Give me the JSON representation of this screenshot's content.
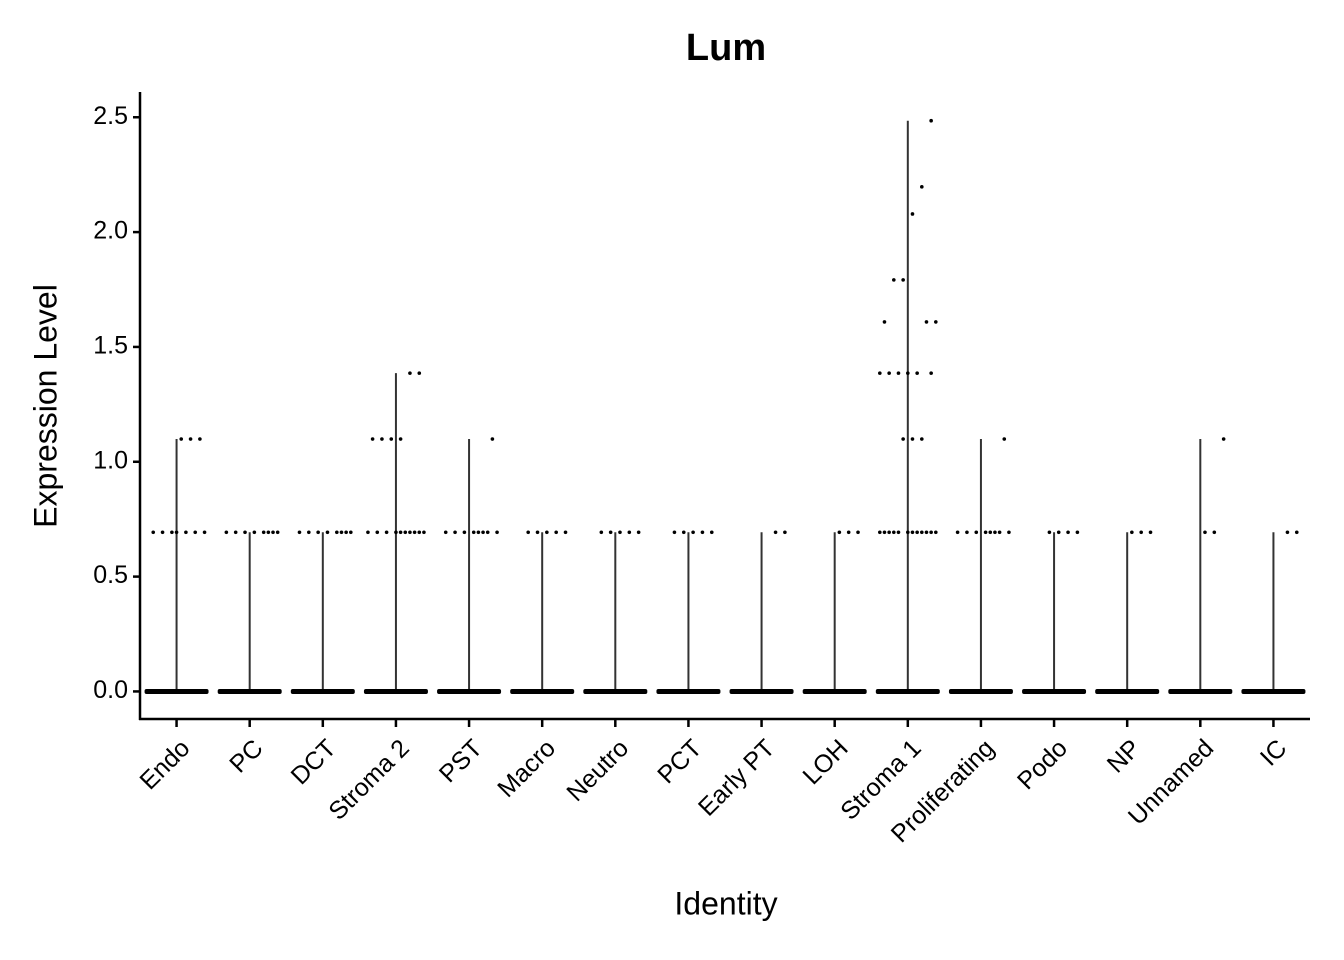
{
  "chart_data": {
    "type": "violin",
    "title": "Lum",
    "x_label": "Identity",
    "y_label": "Expression Level",
    "categories": [
      "Endo",
      "PC",
      "DCT",
      "Stroma 2",
      "PST",
      "Macro",
      "Neutro",
      "PCT",
      "Early PT",
      "LOH",
      "Stroma 1",
      "Proliferating",
      "Podo",
      "NP",
      "Unnamed",
      "IC"
    ],
    "values": [
      1.099,
      0.693,
      0.693,
      1.386,
      1.099,
      0.693,
      0.693,
      0.693,
      0.693,
      0.693,
      2.485,
      1.099,
      0.693,
      0.693,
      1.099,
      0.693
    ],
    "points": [
      [
        0,
        1.099,
        1.099,
        1.099,
        0.693,
        0.693,
        0.693,
        0.693,
        0.693,
        0.693,
        0.693
      ],
      [
        0,
        0.693,
        0.693,
        0.693,
        0.693,
        0.693,
        0.693,
        0.693,
        0.693
      ],
      [
        0,
        0.693,
        0.693,
        0.693,
        0.693,
        0.693,
        0.693,
        0.693,
        0.693
      ],
      [
        0,
        1.386,
        1.386,
        1.099,
        1.099,
        1.099,
        1.099,
        0.693,
        0.693,
        0.693,
        0.693,
        0.693,
        0.693,
        0.693,
        0.693,
        0.693,
        0.693
      ],
      [
        0,
        1.099,
        0.693,
        0.693,
        0.693,
        0.693,
        0.693,
        0.693,
        0.693,
        0.693
      ],
      [
        0,
        0.693,
        0.693,
        0.693,
        0.693,
        0.693
      ],
      [
        0,
        0.693,
        0.693,
        0.693,
        0.693,
        0.693
      ],
      [
        0,
        0.693,
        0.693,
        0.693,
        0.693,
        0.693
      ],
      [
        0,
        0.693,
        0.693
      ],
      [
        0,
        0.693,
        0.693,
        0.693
      ],
      [
        0,
        2.485,
        2.197,
        2.079,
        1.792,
        1.792,
        1.609,
        1.609,
        1.609,
        1.386,
        1.386,
        1.386,
        1.386,
        1.386,
        1.386,
        1.099,
        1.099,
        1.099,
        0.693,
        0.693,
        0.693,
        0.693,
        0.693,
        0.693,
        0.693,
        0.693,
        0.693,
        0.693,
        0.693,
        0.693
      ],
      [
        0,
        1.099,
        0.693,
        0.693,
        0.693,
        0.693,
        0.693,
        0.693,
        0.693,
        0.693
      ],
      [
        0,
        0.693,
        0.693,
        0.693,
        0.693
      ],
      [
        0,
        0.693,
        0.693,
        0.693
      ],
      [
        0,
        1.099,
        0.693,
        0.693
      ],
      [
        0,
        0.693,
        0.693
      ]
    ],
    "color": "#333333",
    "point_color": "#000000",
    "ylim": [
      -0.12,
      2.61
    ],
    "yticks": [
      {
        "value": 0,
        "label": "0.0"
      },
      0.5,
      {
        "value": 1,
        "label": "1.0"
      },
      1.5,
      {
        "value": 2,
        "label": "2.0"
      },
      2.5
    ]
  }
}
